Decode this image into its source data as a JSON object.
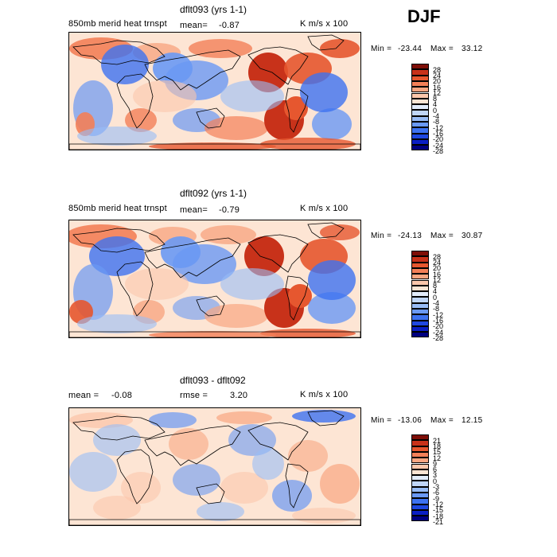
{
  "season": "DJF",
  "colors": {
    "scale": [
      "#000080",
      "#0a1fc4",
      "#1f48e0",
      "#3d72f0",
      "#6a99f4",
      "#98bcf6",
      "#c0d6f9",
      "#e2ecfb",
      "#fde5d4",
      "#fbc7ab",
      "#f8a682",
      "#f38058",
      "#e6572f",
      "#c8321a",
      "#7e0e07"
    ],
    "land": "#ffffff",
    "coast": "#000000"
  },
  "panels": [
    {
      "title": "dflt093 (yrs 1-1)",
      "left_label": "850mb merid heat trnspt",
      "mean_label": "mean=",
      "mean_value": "-0.87",
      "units": "K m/s x 100",
      "min_label": "Min =",
      "min_value": "-23.44",
      "max_label": "Max =",
      "max_value": "33.12",
      "colorbar_labels": [
        "28",
        "24",
        "20",
        "16",
        "12",
        "8",
        "4",
        "0",
        "-4",
        "-8",
        "-12",
        "-16",
        "-20",
        "-24",
        "-28"
      ]
    },
    {
      "title": "dflt092 (yrs 1-1)",
      "left_label": "850mb merid heat trnspt",
      "mean_label": "mean=",
      "mean_value": "-0.79",
      "units": "K m/s x 100",
      "min_label": "Min =",
      "min_value": "-24.13",
      "max_label": "Max =",
      "max_value": "30.87",
      "colorbar_labels": [
        "28",
        "24",
        "20",
        "16",
        "12",
        "8",
        "4",
        "0",
        "-4",
        "-8",
        "-12",
        "-16",
        "-20",
        "-24",
        "-28"
      ]
    },
    {
      "title": "dflt093 - dflt092",
      "left_label": "mean =",
      "mean_label": "",
      "mean_value": "-0.08",
      "rmse_label": "rmse =",
      "rmse_value": "3.20",
      "units": "K m/s x 100",
      "min_label": "Min =",
      "min_value": "-13.06",
      "max_label": "Max =",
      "max_value": "12.15",
      "colorbar_labels": [
        "21",
        "18",
        "15",
        "12",
        "9",
        "6",
        "3",
        "0",
        "-3",
        "-6",
        "-9",
        "-12",
        "-15",
        "-18",
        "-21"
      ]
    }
  ]
}
